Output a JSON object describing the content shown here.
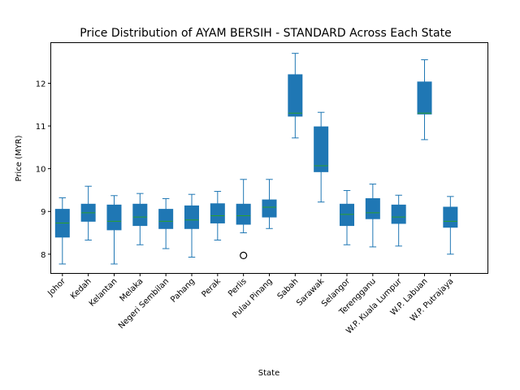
{
  "chart_data": {
    "type": "box",
    "title": "Price Distribution of AYAM BERSIH - STANDARD Across Each State",
    "xlabel": "State",
    "ylabel": "Price (MYR)",
    "ylim": [
      7.55,
      12.95
    ],
    "yticks": [
      8,
      9,
      10,
      11,
      12
    ],
    "grid": false,
    "colors": {
      "box": "#1f77b4",
      "median": "#2ca02c",
      "whisker": "#1f77b4",
      "outlier": "#000000"
    },
    "categories": [
      "Johor",
      "Kedah",
      "Kelantan",
      "Melaka",
      "Negeri Sembilan",
      "Pahang",
      "Perak",
      "Perlis",
      "Pulau Pinang",
      "Sabah",
      "Sarawak",
      "Selangor",
      "Terengganu",
      "W.P. Kuala Lumpur",
      "W.P. Labuan",
      "W.P. Putrajaya"
    ],
    "boxes": [
      {
        "category": "Johor",
        "position": 1,
        "whislo": 7.77,
        "q1": 8.4,
        "med": 8.73,
        "q3": 9.05,
        "whishi": 9.32,
        "fliers": []
      },
      {
        "category": "Kedah",
        "position": 2,
        "whislo": 8.33,
        "q1": 8.77,
        "med": 8.97,
        "q3": 9.17,
        "whishi": 9.59,
        "fliers": []
      },
      {
        "category": "Kelantan",
        "position": 3,
        "whislo": 7.77,
        "q1": 8.57,
        "med": 8.77,
        "q3": 9.15,
        "whishi": 9.37,
        "fliers": []
      },
      {
        "category": "Melaka",
        "position": 4,
        "whislo": 8.22,
        "q1": 8.67,
        "med": 8.87,
        "q3": 9.17,
        "whishi": 9.42,
        "fliers": []
      },
      {
        "category": "Negeri Sembilan",
        "position": 5,
        "whislo": 8.13,
        "q1": 8.6,
        "med": 8.77,
        "q3": 9.05,
        "whishi": 9.3,
        "fliers": []
      },
      {
        "category": "Pahang",
        "position": 6,
        "whislo": 7.93,
        "q1": 8.6,
        "med": 8.8,
        "q3": 9.13,
        "whishi": 9.4,
        "fliers": []
      },
      {
        "category": "Perak",
        "position": 7,
        "whislo": 8.33,
        "q1": 8.73,
        "med": 8.9,
        "q3": 9.18,
        "whishi": 9.47,
        "fliers": []
      },
      {
        "category": "Perlis",
        "position": 8,
        "whislo": 8.5,
        "q1": 8.7,
        "med": 8.9,
        "q3": 9.17,
        "whishi": 9.75,
        "fliers": [
          7.97
        ]
      },
      {
        "category": "Pulau Pinang",
        "position": 9,
        "whislo": 8.6,
        "q1": 8.87,
        "med": 9.1,
        "q3": 9.27,
        "whishi": 9.75,
        "fliers": []
      },
      {
        "category": "Sabah",
        "position": 10,
        "whislo": 10.72,
        "q1": 11.23,
        "med": 11.3,
        "q3": 12.2,
        "whishi": 12.7,
        "fliers": []
      },
      {
        "category": "Sarawak",
        "position": 11,
        "whislo": 9.22,
        "q1": 9.93,
        "med": 10.07,
        "q3": 10.98,
        "whishi": 11.32,
        "fliers": []
      },
      {
        "category": "Selangor",
        "position": 12,
        "whislo": 8.22,
        "q1": 8.67,
        "med": 8.93,
        "q3": 9.17,
        "whishi": 9.49,
        "fliers": []
      },
      {
        "category": "Terengganu",
        "position": 13,
        "whislo": 8.17,
        "q1": 8.83,
        "med": 8.97,
        "q3": 9.3,
        "whishi": 9.64,
        "fliers": []
      },
      {
        "category": "W.P. Kuala Lumpur",
        "position": 14,
        "whislo": 8.19,
        "q1": 8.72,
        "med": 8.87,
        "q3": 9.15,
        "whishi": 9.38,
        "fliers": []
      },
      {
        "category": "W.P. Labuan",
        "position": 15,
        "whislo": 10.68,
        "q1": 11.28,
        "med": 11.3,
        "q3": 12.03,
        "whishi": 12.55,
        "fliers": []
      },
      {
        "category": "W.P. Putrajaya",
        "position": 16,
        "whislo": 8.0,
        "q1": 8.63,
        "med": 8.77,
        "q3": 9.1,
        "whishi": 9.35,
        "fliers": []
      }
    ]
  }
}
